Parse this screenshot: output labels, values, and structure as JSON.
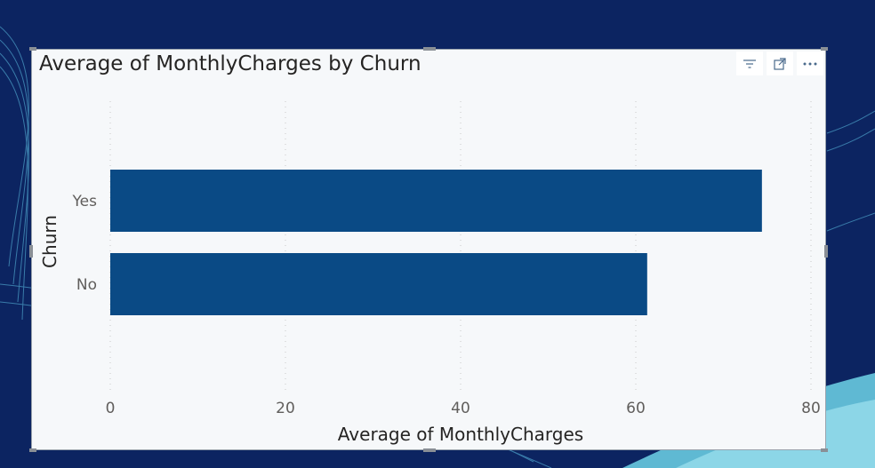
{
  "visual": {
    "header_icons": [
      {
        "name": "filter-icon",
        "glyph": "≡"
      },
      {
        "name": "focus-mode-icon",
        "glyph": "⤢"
      },
      {
        "name": "more-options-icon",
        "glyph": "⋯"
      }
    ]
  },
  "chart_data": {
    "type": "bar",
    "orientation": "horizontal",
    "title": "Average of MonthlyCharges by Churn",
    "xlabel": "Average of MonthlyCharges",
    "ylabel": "Churn",
    "categories": [
      "Yes",
      "No"
    ],
    "values": [
      74.4,
      61.3
    ],
    "xlim": [
      0,
      80
    ],
    "xticks": [
      0,
      20,
      40,
      60,
      80
    ],
    "grid": true,
    "bar_color": "#0a4a85"
  }
}
